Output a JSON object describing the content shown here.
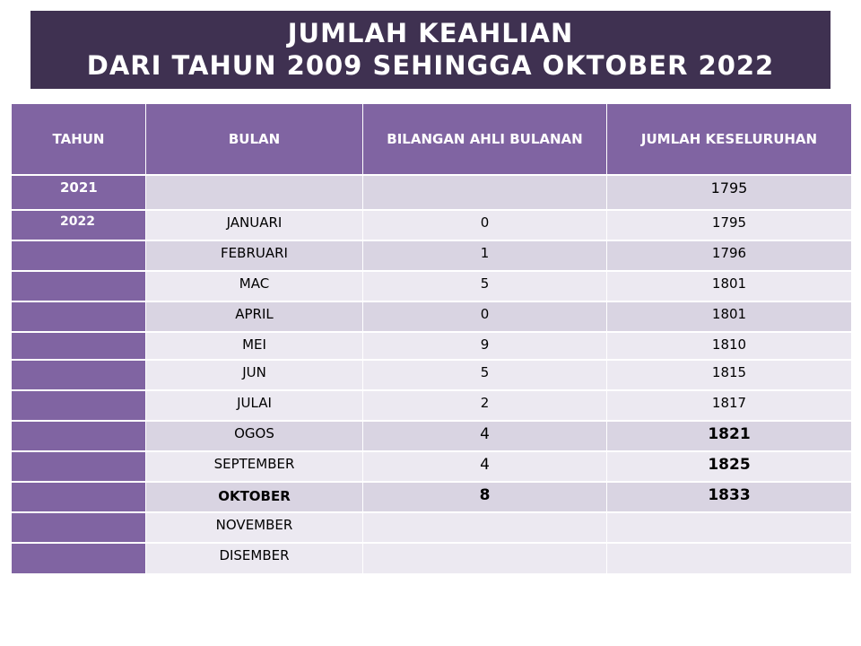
{
  "title": {
    "line1": "JUMLAH KEAHLIAN",
    "line2": "DARI TAHUN 2009 SEHINGGA OKTOBER 2022"
  },
  "table": {
    "headers": [
      "TAHUN",
      "BULAN",
      "BILANGAN AHLI BULANAN",
      "JUMLAH KESELURUHAN"
    ],
    "rows": [
      {
        "tahun": "2021",
        "bulan": "",
        "bilangan": "",
        "jumlah": "1795"
      },
      {
        "tahun": "2022",
        "bulan": "JANUARI",
        "bilangan": "0",
        "jumlah": "1795"
      },
      {
        "tahun": "",
        "bulan": "FEBRUARI",
        "bilangan": "1",
        "jumlah": "1796"
      },
      {
        "tahun": "",
        "bulan": "MAC",
        "bilangan": "5",
        "jumlah": "1801"
      },
      {
        "tahun": "",
        "bulan": "APRIL",
        "bilangan": "0",
        "jumlah": "1801"
      },
      {
        "tahun": "",
        "bulan": "MEI",
        "bilangan": "9",
        "jumlah": "1810"
      },
      {
        "tahun": "",
        "bulan": "JUN",
        "bilangan": "5",
        "jumlah": "1815"
      },
      {
        "tahun": "",
        "bulan": "JULAI",
        "bilangan": "2",
        "jumlah": "1817"
      },
      {
        "tahun": "",
        "bulan": "OGOS",
        "bilangan": "4",
        "jumlah": "1821"
      },
      {
        "tahun": "",
        "bulan": "SEPTEMBER",
        "bilangan": "4",
        "jumlah": "1825"
      },
      {
        "tahun": "",
        "bulan": "OKTOBER",
        "bilangan": "8",
        "jumlah": "1833"
      },
      {
        "tahun": "",
        "bulan": "NOVEMBER",
        "bilangan": "",
        "jumlah": ""
      },
      {
        "tahun": "",
        "bulan": "DISEMBER",
        "bilangan": "",
        "jumlah": ""
      }
    ]
  },
  "colors": {
    "title_bg": "#3f3151",
    "header_bg": "#8064a2",
    "row_dark": "#d9d4e2",
    "row_light": "#ece9f1"
  }
}
